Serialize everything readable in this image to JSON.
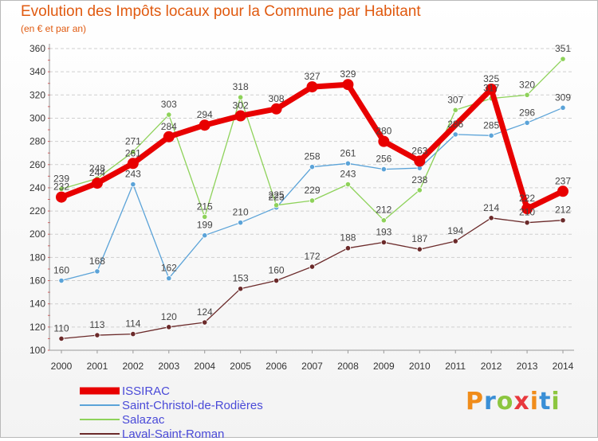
{
  "title": "Evolution des Impôts locaux pour la Commune par Habitant",
  "subtitle": "(en € et par an)",
  "logo_text": "Proxiti",
  "logo_colors": [
    "#f08c1a",
    "#3a8fd6",
    "#8cc63f",
    "#e8383d",
    "#f08c1a",
    "#3a8fd6",
    "#8cc63f"
  ],
  "chart_data": {
    "type": "line",
    "title": "Evolution des Impôts locaux pour la Commune par Habitant",
    "subtitle": "(en € et par an)",
    "x": [
      "2000",
      "2001",
      "2002",
      "2003",
      "2004",
      "2005",
      "2006",
      "2007",
      "2008",
      "2009",
      "2010",
      "2011",
      "2012",
      "2013",
      "2014"
    ],
    "ylim": [
      100,
      360
    ],
    "yticks": [
      100,
      120,
      140,
      160,
      180,
      200,
      220,
      240,
      260,
      280,
      300,
      320,
      340,
      360
    ],
    "grid": "horizontal dashed",
    "legend_position": "bottom-left",
    "series": [
      {
        "name": "ISSIRAC",
        "color": "#e80000",
        "values": [
          232,
          244,
          261,
          284,
          294,
          302,
          308,
          327,
          329,
          280,
          263,
          null,
          325,
          222,
          237
        ],
        "labels": [
          "232",
          "244",
          "261",
          "284",
          "294",
          "302",
          "308",
          "327",
          "329",
          "280",
          "263",
          "",
          "325",
          "222",
          "237"
        ]
      },
      {
        "name": "Saint-Christol-de-Rodières",
        "color": "#5ba3d8",
        "values": [
          160,
          168,
          243,
          162,
          199,
          210,
          223,
          258,
          261,
          256,
          257,
          286,
          285,
          296,
          309
        ],
        "labels": [
          "160",
          "168",
          "243",
          "162",
          "199",
          "210",
          "223",
          "258",
          "261",
          "256",
          "",
          "286",
          "285",
          "296",
          "309"
        ]
      },
      {
        "name": "Salazac",
        "color": "#8ed25a",
        "values": [
          239,
          248,
          271,
          303,
          215,
          318,
          225,
          229,
          243,
          212,
          238,
          307,
          317,
          320,
          351
        ],
        "labels": [
          "239",
          "248",
          "271",
          "303",
          "215",
          "318",
          "225",
          "229",
          "243",
          "212",
          "238",
          "307",
          "317",
          "320",
          "351"
        ]
      },
      {
        "name": "Laval-Saint-Roman",
        "color": "#6b2a2a",
        "values": [
          110,
          113,
          114,
          120,
          124,
          153,
          160,
          172,
          188,
          193,
          187,
          194,
          214,
          210,
          212
        ],
        "labels": [
          "110",
          "113",
          "114",
          "120",
          "124",
          "153",
          "160",
          "172",
          "188",
          "193",
          "187",
          "194",
          "214",
          "210",
          "212"
        ]
      }
    ]
  }
}
